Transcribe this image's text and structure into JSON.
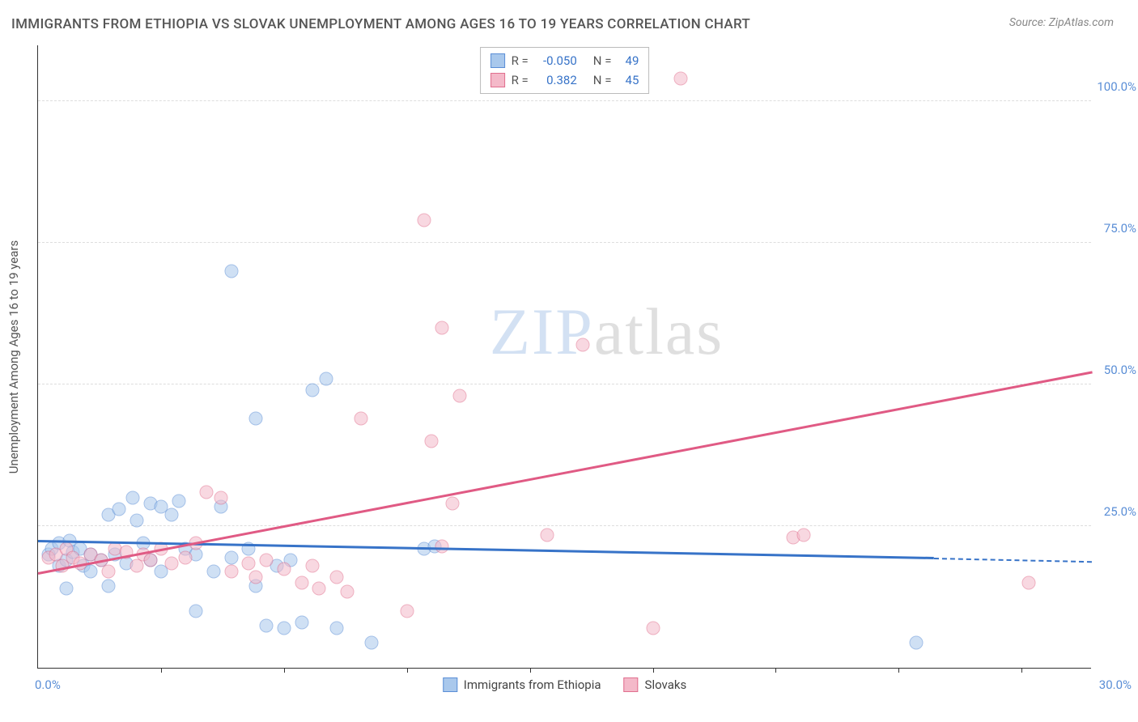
{
  "title": "IMMIGRANTS FROM ETHIOPIA VS SLOVAK UNEMPLOYMENT AMONG AGES 16 TO 19 YEARS CORRELATION CHART",
  "source_prefix": "Source: ",
  "source_name": "ZipAtlas.com",
  "watermark_zip": "ZIP",
  "watermark_atlas": "atlas",
  "chart": {
    "type": "scatter",
    "background_color": "#ffffff",
    "grid_color": "#dddddd",
    "axis_color": "#333333",
    "yaxis_title": "Unemployment Among Ages 16 to 19 years",
    "xlim": [
      0,
      30
    ],
    "ylim": [
      0,
      110
    ],
    "xtick_positions": [
      3.5,
      7,
      10.5,
      14,
      17.5,
      21,
      24.5,
      28
    ],
    "xlabel_min": "0.0%",
    "xlabel_max": "30.0%",
    "ytick_values": [
      25,
      50,
      75,
      100
    ],
    "ytick_labels": [
      "25.0%",
      "50.0%",
      "75.0%",
      "100.0%"
    ],
    "ytick_color": "#5a8ed6",
    "xtick_color": "#5a8ed6",
    "marker_radius": 8.5,
    "marker_opacity": 0.55,
    "series": [
      {
        "name": "Immigrants from Ethiopia",
        "fill": "#a9c8ec",
        "stroke": "#5a8ed6",
        "trend_color": "#3773c8",
        "r_label": "R =",
        "r_value": "-0.050",
        "n_label": "N =",
        "n_value": "49",
        "trend": {
          "x1": 0,
          "y1": 22.2,
          "x2": 25.5,
          "y2": 19.2,
          "dash_to_x": 30,
          "dash_to_y": 18.6
        },
        "points": [
          [
            0.3,
            20
          ],
          [
            0.4,
            21
          ],
          [
            0.6,
            18
          ],
          [
            0.6,
            22
          ],
          [
            0.8,
            14
          ],
          [
            0.8,
            19
          ],
          [
            0.9,
            22.5
          ],
          [
            1.0,
            20.5
          ],
          [
            1.2,
            21
          ],
          [
            1.3,
            18
          ],
          [
            1.5,
            20
          ],
          [
            1.5,
            17
          ],
          [
            1.8,
            19
          ],
          [
            2.0,
            14.5
          ],
          [
            2.0,
            27
          ],
          [
            2.2,
            20
          ],
          [
            2.3,
            28
          ],
          [
            2.5,
            18.5
          ],
          [
            2.7,
            30
          ],
          [
            2.8,
            26
          ],
          [
            3.0,
            22
          ],
          [
            3.2,
            29
          ],
          [
            3.2,
            19
          ],
          [
            3.5,
            28.5
          ],
          [
            3.5,
            17
          ],
          [
            3.8,
            27
          ],
          [
            4.0,
            29.5
          ],
          [
            4.2,
            21
          ],
          [
            4.5,
            20
          ],
          [
            4.5,
            10
          ],
          [
            5.0,
            17
          ],
          [
            5.2,
            28.5
          ],
          [
            5.5,
            19.5
          ],
          [
            5.5,
            70
          ],
          [
            6.0,
            21
          ],
          [
            6.2,
            44
          ],
          [
            6.2,
            14.5
          ],
          [
            6.5,
            7.5
          ],
          [
            6.8,
            18
          ],
          [
            7.0,
            7
          ],
          [
            7.2,
            19
          ],
          [
            7.5,
            8
          ],
          [
            7.8,
            49
          ],
          [
            8.2,
            51
          ],
          [
            8.5,
            7
          ],
          [
            9.5,
            4.5
          ],
          [
            11.0,
            21
          ],
          [
            11.3,
            21.5
          ],
          [
            25.0,
            4.5
          ]
        ]
      },
      {
        "name": "Slovaks",
        "fill": "#f4b9c9",
        "stroke": "#e16f8e",
        "trend_color": "#e05a84",
        "r_label": "R =",
        "r_value": "0.382",
        "n_label": "N =",
        "n_value": "45",
        "trend": {
          "x1": 0,
          "y1": 16.5,
          "x2": 30,
          "y2": 52,
          "dash_to_x": null,
          "dash_to_y": null
        },
        "points": [
          [
            0.3,
            19.5
          ],
          [
            0.5,
            20
          ],
          [
            0.7,
            18
          ],
          [
            0.8,
            21
          ],
          [
            1.0,
            19.5
          ],
          [
            1.2,
            18.5
          ],
          [
            1.5,
            20
          ],
          [
            1.8,
            19
          ],
          [
            2.0,
            17
          ],
          [
            2.2,
            21
          ],
          [
            2.5,
            20.5
          ],
          [
            2.8,
            18
          ],
          [
            3.0,
            20
          ],
          [
            3.2,
            19
          ],
          [
            3.5,
            21
          ],
          [
            3.8,
            18.5
          ],
          [
            4.2,
            19.5
          ],
          [
            4.5,
            22
          ],
          [
            4.8,
            31
          ],
          [
            5.2,
            30
          ],
          [
            5.5,
            17
          ],
          [
            6.0,
            18.5
          ],
          [
            6.2,
            16
          ],
          [
            6.5,
            19
          ],
          [
            7.0,
            17.5
          ],
          [
            7.5,
            15
          ],
          [
            7.8,
            18
          ],
          [
            8.0,
            14
          ],
          [
            8.5,
            16
          ],
          [
            8.8,
            13.5
          ],
          [
            9.2,
            44
          ],
          [
            10.5,
            10
          ],
          [
            11.0,
            79
          ],
          [
            11.2,
            40
          ],
          [
            11.5,
            60
          ],
          [
            11.5,
            21.5
          ],
          [
            11.8,
            29
          ],
          [
            12.0,
            48
          ],
          [
            14.5,
            23.5
          ],
          [
            15.5,
            57
          ],
          [
            17.5,
            7
          ],
          [
            18.3,
            104
          ],
          [
            21.5,
            23
          ],
          [
            21.8,
            23.5
          ],
          [
            28.2,
            15
          ]
        ]
      }
    ]
  }
}
